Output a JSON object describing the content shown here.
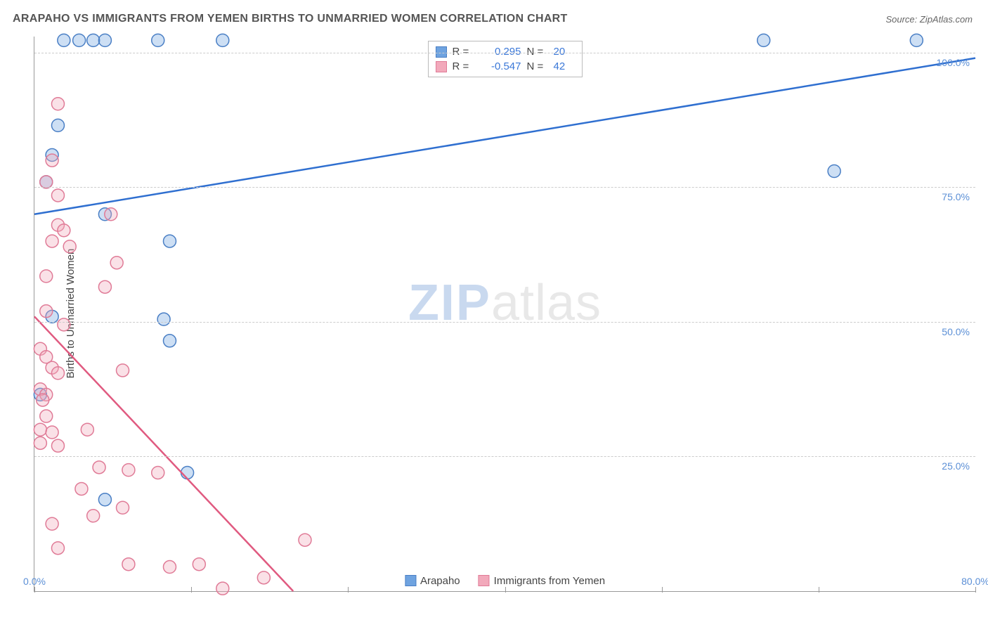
{
  "title": "ARAPAHO VS IMMIGRANTS FROM YEMEN BIRTHS TO UNMARRIED WOMEN CORRELATION CHART",
  "source": "Source: ZipAtlas.com",
  "y_axis_label": "Births to Unmarried Women",
  "watermark_zip": "ZIP",
  "watermark_atlas": "atlas",
  "chart": {
    "type": "scatter",
    "background_color": "#ffffff",
    "grid_color": "#cccccc",
    "axis_color": "#999999",
    "tick_label_color": "#5b8fd6",
    "xlim": [
      0,
      80
    ],
    "ylim": [
      0,
      103
    ],
    "x_ticks": [
      0,
      13.33,
      26.67,
      40,
      53.33,
      66.67,
      80
    ],
    "x_tick_labels": {
      "0": "0.0%",
      "80": "80.0%"
    },
    "y_ticks": [
      25,
      50,
      75,
      100
    ],
    "y_tick_labels": {
      "25": "25.0%",
      "50": "50.0%",
      "75": "75.0%",
      "100": "100.0%"
    },
    "label_fontsize": 14,
    "title_fontsize": 16,
    "marker_radius": 9,
    "marker_fill_opacity": 0.35,
    "marker_stroke_width": 1.5,
    "line_width": 2.5,
    "series": [
      {
        "name": "Arapaho",
        "color": "#6fa3e0",
        "stroke": "#4a7fc5",
        "line_color": "#2f6fd0",
        "r": 0.295,
        "n": 20,
        "regression": {
          "x1": 0,
          "y1": 70,
          "x2": 80,
          "y2": 99
        },
        "points": [
          [
            2.5,
            102.3
          ],
          [
            3.8,
            102.3
          ],
          [
            5,
            102.3
          ],
          [
            6,
            102.3
          ],
          [
            10.5,
            102.3
          ],
          [
            16,
            102.3
          ],
          [
            62,
            102.3
          ],
          [
            75,
            102.3
          ],
          [
            2,
            86.5
          ],
          [
            1.5,
            81
          ],
          [
            1,
            76
          ],
          [
            68,
            78
          ],
          [
            6,
            70
          ],
          [
            11.5,
            65
          ],
          [
            1.5,
            51
          ],
          [
            11,
            50.5
          ],
          [
            11.5,
            46.5
          ],
          [
            0.5,
            36.5
          ],
          [
            13,
            22
          ],
          [
            6,
            17
          ]
        ]
      },
      {
        "name": "Immigrants from Yemen",
        "color": "#f2a9bb",
        "stroke": "#e07b97",
        "line_color": "#e05a80",
        "r": -0.547,
        "n": 42,
        "regression": {
          "x1": 0,
          "y1": 51,
          "x2": 22,
          "y2": 0
        },
        "points": [
          [
            2,
            90.5
          ],
          [
            1.5,
            80
          ],
          [
            1,
            76
          ],
          [
            2,
            73.5
          ],
          [
            2,
            68
          ],
          [
            2.5,
            67
          ],
          [
            1.5,
            65
          ],
          [
            6.5,
            70
          ],
          [
            3,
            64
          ],
          [
            7,
            61
          ],
          [
            1,
            58.5
          ],
          [
            6,
            56.5
          ],
          [
            1,
            52
          ],
          [
            2.5,
            49.5
          ],
          [
            0.5,
            45
          ],
          [
            1,
            43.5
          ],
          [
            1.5,
            41.5
          ],
          [
            2,
            40.5
          ],
          [
            7.5,
            41
          ],
          [
            0.5,
            37.5
          ],
          [
            1,
            36.5
          ],
          [
            0.7,
            35.5
          ],
          [
            1,
            32.5
          ],
          [
            0.5,
            30
          ],
          [
            1.5,
            29.5
          ],
          [
            4.5,
            30
          ],
          [
            0.5,
            27.5
          ],
          [
            2,
            27
          ],
          [
            5.5,
            23
          ],
          [
            8,
            22.5
          ],
          [
            10.5,
            22
          ],
          [
            4,
            19
          ],
          [
            7.5,
            15.5
          ],
          [
            1.5,
            12.5
          ],
          [
            5,
            14
          ],
          [
            2,
            8
          ],
          [
            23,
            9.5
          ],
          [
            8,
            5
          ],
          [
            11.5,
            4.5
          ],
          [
            14,
            5
          ],
          [
            19.5,
            2.5
          ],
          [
            16,
            0.5
          ]
        ]
      }
    ]
  },
  "legend_top": {
    "r_label": "R =",
    "n_label": "N ="
  },
  "legend_bottom": {
    "items": [
      "Arapaho",
      "Immigrants from Yemen"
    ]
  }
}
